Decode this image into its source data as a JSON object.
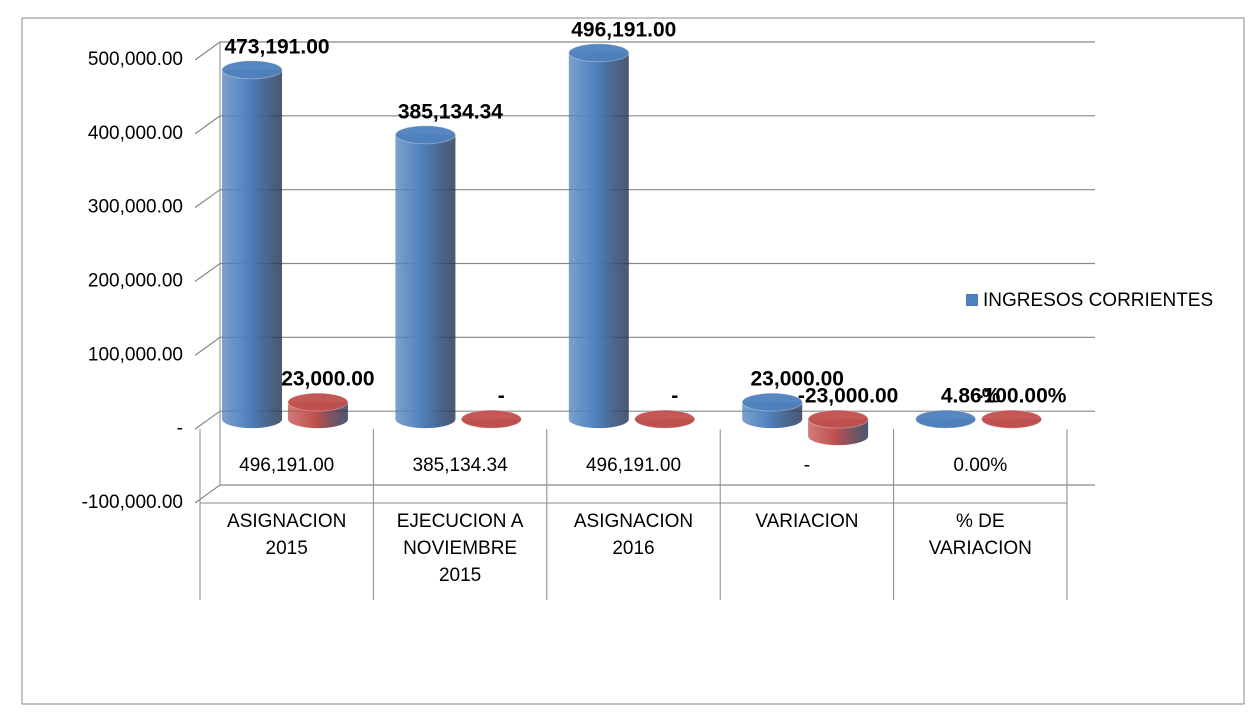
{
  "chart_data": {
    "type": "bar",
    "categories": [
      "ASIGNACION 2015",
      "EJECUCION  A NOVIEMBRE 2015",
      "ASIGNACION 2016",
      "VARIACION",
      "% DE VARIACION"
    ],
    "series": [
      {
        "name": "INGRESOS CORRIENTES",
        "color": "#4f81bd",
        "values": [
          473191,
          385134.34,
          496191,
          23000,
          4.86
        ],
        "value_labels": [
          "473,191.00",
          "385,134.34",
          "496,191.00",
          "23,000.00",
          "4.86%"
        ]
      },
      {
        "color": "#c0504d",
        "values": [
          23000,
          0,
          0,
          -23000,
          -100
        ],
        "value_labels": [
          "23,000.00",
          "-",
          "-",
          "-23,000.00",
          "-100.00%"
        ]
      }
    ],
    "table_row": [
      "496,191.00",
      "385,134.34",
      "496,191.00",
      "-",
      "0.00%"
    ],
    "ylim": [
      -100000,
      500000
    ],
    "yticks": [
      {
        "value": -100000,
        "label": "-100,000.00"
      },
      {
        "value": 0,
        "label": "-"
      },
      {
        "value": 100000,
        "label": "100,000.00"
      },
      {
        "value": 200000,
        "label": "200,000.00"
      },
      {
        "value": 300000,
        "label": "300,000.00"
      },
      {
        "value": 400000,
        "label": "400,000.00"
      },
      {
        "value": 500000,
        "label": "500,000.00"
      }
    ],
    "grid": true,
    "legend": "right"
  }
}
